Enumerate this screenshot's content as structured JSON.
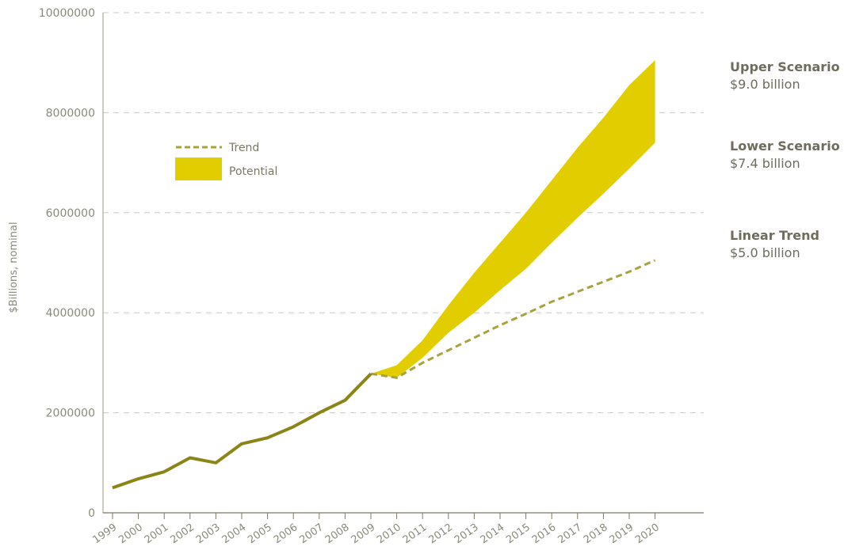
{
  "chart_data": {
    "type": "line",
    "ylabel": "$Billions, nominal",
    "ylim": [
      0,
      10000000
    ],
    "yticks": [
      "0",
      "2000000",
      "4000000",
      "6000000",
      "8000000",
      "10000000"
    ],
    "ytick_values": [
      0,
      2000000,
      4000000,
      6000000,
      8000000,
      10000000
    ],
    "grid": "dashed horizontal",
    "x": [
      "1999",
      "2000",
      "2001",
      "2002",
      "2003",
      "2004",
      "2005",
      "2006",
      "2007",
      "2008",
      "2009",
      "2010",
      "2011",
      "2012",
      "2013",
      "2014",
      "2015",
      "2016",
      "2017",
      "2018",
      "2019",
      "2020"
    ],
    "historical": {
      "x": [
        "1999",
        "2000",
        "2001",
        "2002",
        "2003",
        "2004",
        "2005",
        "2006",
        "2007",
        "2008",
        "2009"
      ],
      "values": [
        500000,
        680000,
        820000,
        1100000,
        1000000,
        1380000,
        1500000,
        1720000,
        2000000,
        2250000,
        2780000
      ]
    },
    "series": [
      {
        "name": "Trend",
        "style": "dashed",
        "x": [
          "2009",
          "2010",
          "2011",
          "2012",
          "2013",
          "2014",
          "2015",
          "2016",
          "2017",
          "2018",
          "2019",
          "2020"
        ],
        "values": [
          2780000,
          2700000,
          3000000,
          3250000,
          3500000,
          3750000,
          3980000,
          4220000,
          4420000,
          4620000,
          4820000,
          5050000
        ]
      },
      {
        "name": "Potential",
        "style": "band",
        "x": [
          "2009",
          "2010",
          "2011",
          "2012",
          "2013",
          "2014",
          "2015",
          "2016",
          "2017",
          "2018",
          "2019",
          "2020"
        ],
        "upper": [
          2780000,
          2950000,
          3450000,
          4150000,
          4800000,
          5400000,
          6000000,
          6650000,
          7300000,
          7900000,
          8550000,
          9050000
        ],
        "lower": [
          2780000,
          2700000,
          3100000,
          3600000,
          4000000,
          4450000,
          4880000,
          5400000,
          5900000,
          6380000,
          6880000,
          7400000
        ]
      }
    ],
    "legend": {
      "placement": "upper-left inside",
      "items": [
        {
          "label": "Trend",
          "symbol": "dashed-line"
        },
        {
          "label": "Potential",
          "symbol": "filled-box"
        }
      ]
    },
    "annotations": [
      {
        "title": "Upper Scenario",
        "value": "$9.0 billion"
      },
      {
        "title": "Lower Scenario",
        "value": "$7.4 billion"
      },
      {
        "title": "Linear Trend",
        "value": "$5.0 billion"
      }
    ],
    "colors": {
      "historical": "#8a8516",
      "trend": "#a8a23a",
      "potential": "#e2cd00",
      "grid": "#c8c8c8",
      "axis": "#7a7864",
      "text": "#8a8a7a"
    }
  }
}
